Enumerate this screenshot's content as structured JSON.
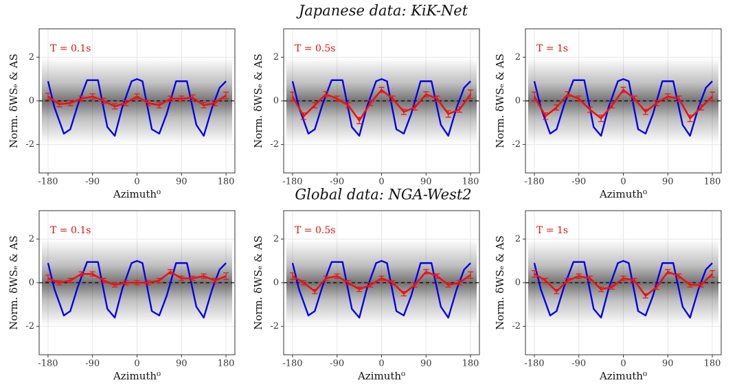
{
  "row_titles": [
    "Japanese data: KiK-Net",
    "Global data: NGA-West2"
  ],
  "chart_data": [
    {
      "type": "line",
      "annotation": "T = 0.1s",
      "x_label": "Azimuth⁰",
      "y_label": "Norm. δWSₑ & AS",
      "xlim": [
        -198,
        198
      ],
      "ylim": [
        -3.3,
        3.3
      ],
      "xticks": [
        -180,
        -90,
        0,
        90,
        180
      ],
      "yticks": [
        -2,
        0,
        2
      ],
      "grid": true,
      "reference_line": 0,
      "series": [
        {
          "color": "#0000ee",
          "x": [
            -180,
            -167,
            -148,
            -135,
            -120,
            -101,
            -79,
            -60,
            -45,
            -30,
            -11,
            0,
            11,
            30,
            45,
            60,
            79,
            101,
            120,
            135,
            152,
            167,
            180
          ],
          "values": [
            0.9,
            -0.3,
            -1.5,
            -1.3,
            -0.2,
            0.95,
            0.95,
            -1.2,
            -1.6,
            -0.3,
            0.9,
            1.0,
            0.9,
            -1.3,
            -1.5,
            -0.6,
            0.9,
            0.9,
            -1.1,
            -1.6,
            -0.3,
            0.6,
            0.9
          ]
        },
        {
          "color": "#ee1111",
          "x": [
            -180,
            -157.5,
            -135,
            -112.5,
            -90,
            -67.5,
            -45,
            -22.5,
            0,
            22.5,
            45,
            67.5,
            90,
            112.5,
            135,
            157.5,
            180
          ],
          "values": [
            0.2,
            -0.15,
            -0.1,
            0.1,
            0.2,
            0,
            -0.25,
            -0.1,
            0.2,
            -0.1,
            -0.2,
            0.1,
            0.1,
            0.15,
            -0.2,
            -0.1,
            0.25
          ],
          "errors": [
            0.15,
            0.12,
            0.12,
            0.12,
            0.12,
            0.12,
            0.12,
            0.12,
            0.12,
            0.12,
            0.12,
            0.12,
            0.12,
            0.12,
            0.12,
            0.12,
            0.15
          ]
        }
      ]
    },
    {
      "type": "line",
      "annotation": "T = 0.5s",
      "y_label": "Norm. δWSₑ & AS",
      "xlim": [
        -198,
        198
      ],
      "ylim": [
        -3.3,
        3.3
      ],
      "xticks": [
        -180,
        -90,
        0,
        90,
        180
      ],
      "yticks": [
        -2,
        0,
        2
      ],
      "grid": true,
      "reference_line": 0,
      "series": [
        {
          "color": "#0000ee",
          "x": [
            -180,
            -167,
            -148,
            -135,
            -120,
            -101,
            -79,
            -60,
            -45,
            -30,
            -11,
            0,
            11,
            30,
            45,
            60,
            79,
            101,
            120,
            135,
            152,
            167,
            180
          ],
          "values": [
            0.9,
            -0.3,
            -1.5,
            -1.3,
            -0.2,
            0.95,
            0.95,
            -1.2,
            -1.6,
            -0.3,
            0.9,
            1.0,
            0.9,
            -1.3,
            -1.5,
            -0.6,
            0.9,
            0.9,
            -1.1,
            -1.6,
            -0.3,
            0.6,
            0.9
          ]
        },
        {
          "color": "#ee1111",
          "x": [
            -180,
            -157.5,
            -135,
            -112.5,
            -90,
            -67.5,
            -45,
            -22.5,
            0,
            22.5,
            45,
            67.5,
            90,
            112.5,
            135,
            157.5,
            180
          ],
          "values": [
            0.2,
            -0.7,
            -0.2,
            0.3,
            0.1,
            -0.2,
            -0.9,
            -0.1,
            0.5,
            0.1,
            -0.5,
            -0.3,
            0.3,
            0.1,
            -0.6,
            -0.4,
            0.3
          ],
          "errors": [
            0.2,
            0.15,
            0.12,
            0.12,
            0.12,
            0.12,
            0.15,
            0.12,
            0.12,
            0.12,
            0.12,
            0.12,
            0.12,
            0.12,
            0.15,
            0.12,
            0.2
          ]
        }
      ]
    },
    {
      "type": "line",
      "annotation": "T = 1s",
      "x_label": "Azimuth⁰",
      "y_label": "Norm. δWSₑ & AS",
      "xlim": [
        -198,
        198
      ],
      "ylim": [
        -3.3,
        3.3
      ],
      "xticks": [
        -180,
        -90,
        0,
        90,
        180
      ],
      "yticks": [
        -2,
        0,
        2
      ],
      "grid": true,
      "reference_line": 0,
      "series": [
        {
          "color": "#0000ee",
          "x": [
            -180,
            -167,
            -148,
            -135,
            -120,
            -101,
            -79,
            -60,
            -45,
            -30,
            -11,
            0,
            11,
            30,
            45,
            60,
            79,
            101,
            120,
            135,
            152,
            167,
            180
          ],
          "values": [
            0.9,
            -0.3,
            -1.5,
            -1.3,
            -0.2,
            0.95,
            0.95,
            -1.2,
            -1.6,
            -0.3,
            0.9,
            1.0,
            0.9,
            -1.3,
            -1.5,
            -0.6,
            0.9,
            0.9,
            -1.1,
            -1.6,
            -0.3,
            0.6,
            0.9
          ]
        },
        {
          "color": "#ee1111",
          "x": [
            -180,
            -157.5,
            -135,
            -112.5,
            -90,
            -67.5,
            -45,
            -22.5,
            0,
            22.5,
            45,
            67.5,
            90,
            112.5,
            135,
            157.5,
            180
          ],
          "values": [
            0.2,
            -0.7,
            -0.3,
            0.3,
            0.1,
            -0.4,
            -0.8,
            -0.2,
            0.5,
            0.1,
            -0.5,
            -0.1,
            0.2,
            0.1,
            -0.8,
            -0.3,
            0.2
          ],
          "errors": [
            0.2,
            0.15,
            0.12,
            0.12,
            0.12,
            0.12,
            0.15,
            0.12,
            0.12,
            0.12,
            0.12,
            0.12,
            0.12,
            0.12,
            0.15,
            0.12,
            0.2
          ]
        }
      ]
    },
    {
      "type": "line",
      "annotation": "T = 0.1s",
      "x_label": "Azimuth⁰",
      "y_label": "Norm. δWSₑ & AS",
      "xlim": [
        -198,
        198
      ],
      "ylim": [
        -3.3,
        3.3
      ],
      "xticks": [
        -180,
        -90,
        0,
        90,
        180
      ],
      "yticks": [
        -2,
        0,
        2
      ],
      "grid": true,
      "reference_line": 0,
      "series": [
        {
          "color": "#0000ee",
          "x": [
            -180,
            -167,
            -148,
            -135,
            -120,
            -101,
            -79,
            -60,
            -45,
            -30,
            -11,
            0,
            11,
            30,
            45,
            60,
            79,
            101,
            120,
            135,
            152,
            167,
            180
          ],
          "values": [
            0.9,
            -0.3,
            -1.5,
            -1.3,
            -0.2,
            0.95,
            0.95,
            -1.2,
            -1.6,
            -0.3,
            0.9,
            1.0,
            0.9,
            -1.3,
            -1.5,
            -0.6,
            0.9,
            0.9,
            -1.1,
            -1.6,
            -0.3,
            0.6,
            0.9
          ]
        },
        {
          "color": "#ee1111",
          "x": [
            -180,
            -157.5,
            -135,
            -112.5,
            -90,
            -67.5,
            -45,
            -22.5,
            0,
            22.5,
            45,
            67.5,
            90,
            112.5,
            135,
            157.5,
            180
          ],
          "values": [
            0.2,
            0,
            0.1,
            0.4,
            0.4,
            0.1,
            -0.1,
            0,
            0,
            0,
            0.1,
            0.5,
            0.2,
            0.2,
            0.3,
            0.1,
            0.3
          ],
          "errors": [
            0.15,
            0.1,
            0.1,
            0.1,
            0.1,
            0.1,
            0.1,
            0.1,
            0.1,
            0.1,
            0.1,
            0.1,
            0.1,
            0.1,
            0.1,
            0.1,
            0.15
          ]
        }
      ]
    },
    {
      "type": "line",
      "annotation": "T = 0.5s",
      "x_label": "Azimuth⁰",
      "y_label": "Norm. δWSₑ & AS",
      "xlim": [
        -198,
        198
      ],
      "ylim": [
        -3.3,
        3.3
      ],
      "xticks": [
        -180,
        -90,
        0,
        90,
        180
      ],
      "yticks": [
        -2,
        0,
        2
      ],
      "grid": true,
      "reference_line": 0,
      "series": [
        {
          "color": "#0000ee",
          "x": [
            -180,
            -167,
            -148,
            -135,
            -120,
            -101,
            -79,
            -60,
            -45,
            -30,
            -11,
            0,
            11,
            30,
            45,
            60,
            79,
            101,
            120,
            135,
            152,
            167,
            180
          ],
          "values": [
            0.9,
            -0.3,
            -1.5,
            -1.3,
            -0.2,
            0.95,
            0.95,
            -1.2,
            -1.6,
            -0.3,
            0.9,
            1.0,
            0.9,
            -1.3,
            -1.5,
            -0.6,
            0.9,
            0.9,
            -1.1,
            -1.6,
            -0.3,
            0.6,
            0.9
          ]
        },
        {
          "color": "#ee1111",
          "x": [
            -180,
            -157.5,
            -135,
            -112.5,
            -90,
            -67.5,
            -45,
            -22.5,
            0,
            22.5,
            45,
            67.5,
            90,
            112.5,
            135,
            157.5,
            180
          ],
          "values": [
            0.3,
            0,
            -0.4,
            0.2,
            0.3,
            0,
            -0.3,
            -0.1,
            0.2,
            0,
            -0.5,
            -0.1,
            0.5,
            0.3,
            -0.1,
            0,
            0.35
          ],
          "errors": [
            0.15,
            0.1,
            0.1,
            0.1,
            0.1,
            0.1,
            0.1,
            0.1,
            0.1,
            0.1,
            0.1,
            0.1,
            0.1,
            0.1,
            0.1,
            0.1,
            0.15
          ]
        }
      ]
    },
    {
      "type": "line",
      "annotation": "T = 1s",
      "x_label": "Azimuth⁰",
      "y_label": "Norm. δWSₑ & AS",
      "xlim": [
        -198,
        198
      ],
      "ylim": [
        -3.3,
        3.3
      ],
      "xticks": [
        -180,
        -90,
        0,
        90,
        180
      ],
      "yticks": [
        -2,
        0,
        2
      ],
      "grid": true,
      "reference_line": 0,
      "series": [
        {
          "color": "#0000ee",
          "x": [
            -180,
            -167,
            -148,
            -135,
            -120,
            -101,
            -79,
            -60,
            -45,
            -30,
            -11,
            0,
            11,
            30,
            45,
            60,
            79,
            101,
            120,
            135,
            152,
            167,
            180
          ],
          "values": [
            0.9,
            -0.3,
            -1.5,
            -1.3,
            -0.2,
            0.95,
            0.95,
            -1.2,
            -1.6,
            -0.3,
            0.9,
            1.0,
            0.9,
            -1.3,
            -1.5,
            -0.6,
            0.9,
            0.9,
            -1.1,
            -1.6,
            -0.3,
            0.6,
            0.9
          ]
        },
        {
          "color": "#ee1111",
          "x": [
            -180,
            -157.5,
            -135,
            -112.5,
            -90,
            -67.5,
            -45,
            -22.5,
            0,
            22.5,
            45,
            67.5,
            90,
            112.5,
            135,
            157.5,
            180
          ],
          "values": [
            0.4,
            0.1,
            -0.4,
            0.1,
            0.3,
            0.2,
            -0.3,
            -0.2,
            0.2,
            0.1,
            -0.6,
            -0.2,
            0.5,
            0.3,
            -0.1,
            -0.1,
            0.4
          ],
          "errors": [
            0.15,
            0.1,
            0.1,
            0.1,
            0.1,
            0.1,
            0.1,
            0.1,
            0.1,
            0.1,
            0.1,
            0.1,
            0.1,
            0.1,
            0.1,
            0.1,
            0.15
          ]
        }
      ]
    }
  ]
}
